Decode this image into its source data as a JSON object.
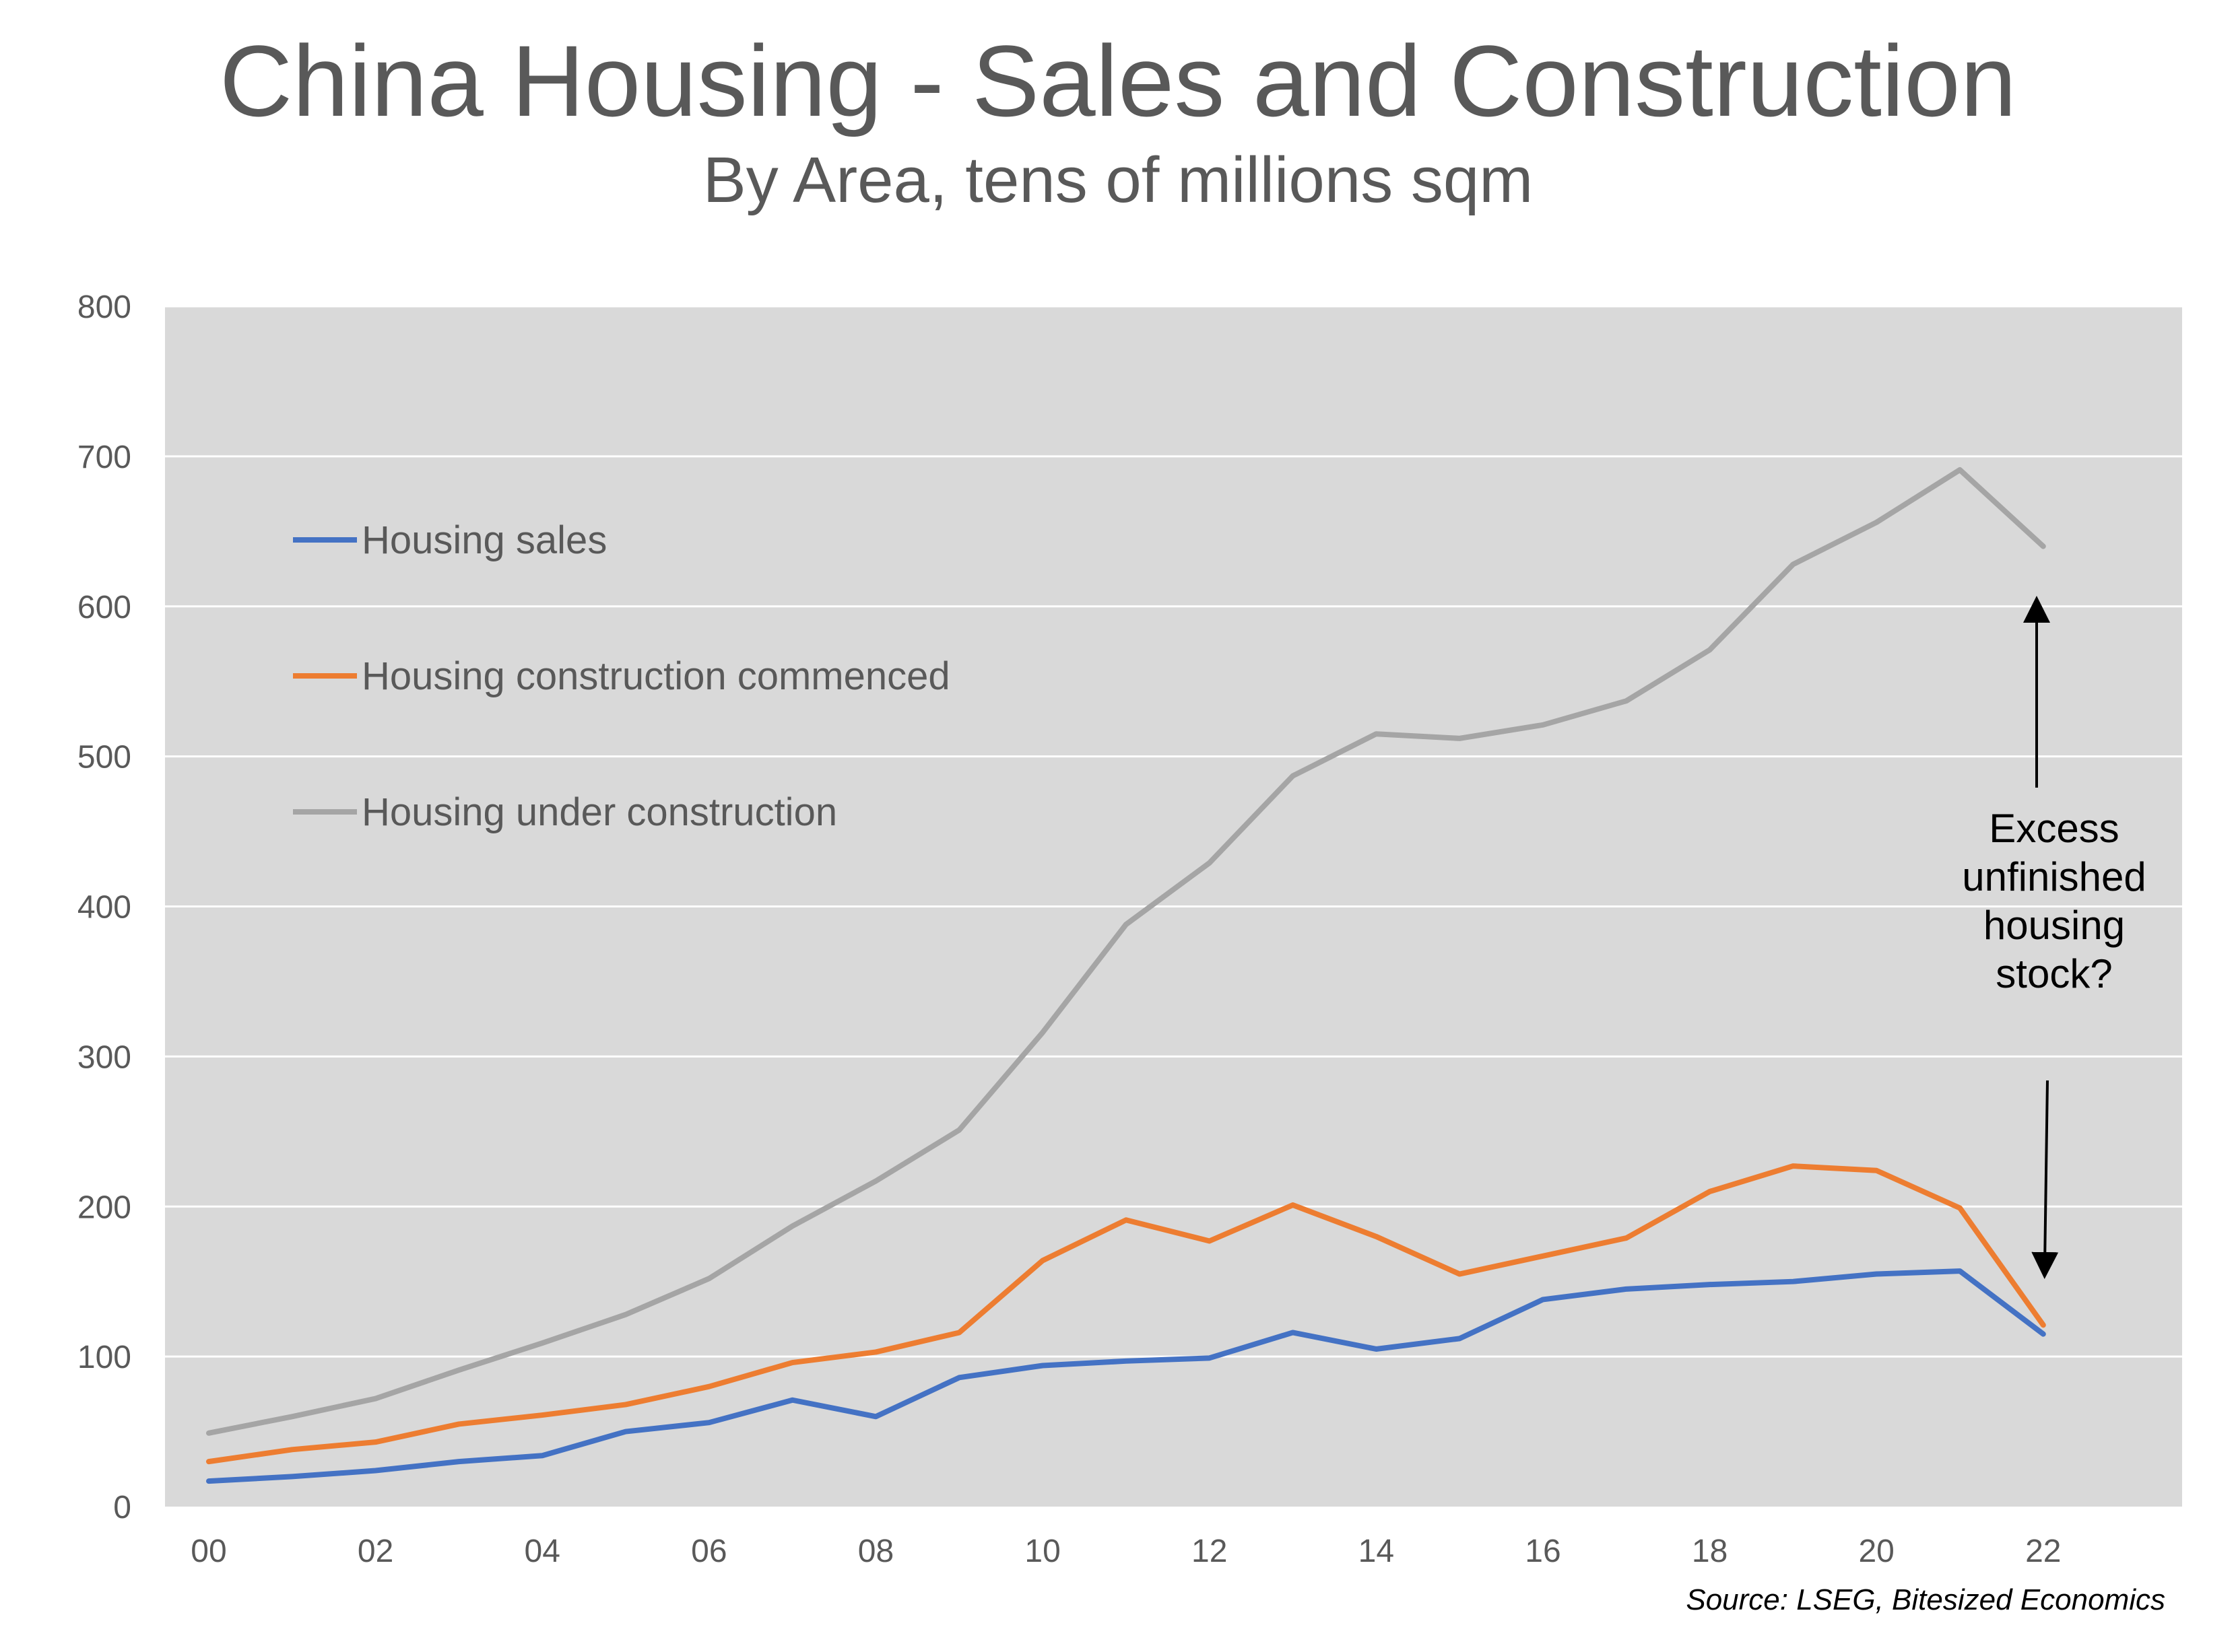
{
  "title": "China Housing - Sales and Construction",
  "subtitle": "By Area, tens of millions sqm",
  "source": "Source: LSEG, Bitesized Economics",
  "annotation": [
    "Excess",
    "unfinished",
    "housing",
    "stock?"
  ],
  "colors": {
    "plot_bg": "#d9d9d9",
    "grid": "#ffffff",
    "sales": "#4472c4",
    "commenced": "#ed7d31",
    "under_construction": "#a5a5a5",
    "text": "#595959"
  },
  "chart_data": {
    "type": "line",
    "title": "China Housing - Sales and Construction",
    "subtitle": "By Area, tens of millions sqm",
    "xlabel": "",
    "ylabel": "",
    "ylim": [
      0,
      800
    ],
    "yticks": [
      0,
      100,
      200,
      300,
      400,
      500,
      600,
      700,
      800
    ],
    "xlim": [
      0,
      23
    ],
    "xticks": [
      0,
      2,
      4,
      6,
      8,
      10,
      12,
      14,
      16,
      18,
      20,
      22
    ],
    "xtick_labels": [
      "00",
      "02",
      "04",
      "06",
      "08",
      "10",
      "12",
      "14",
      "16",
      "18",
      "20",
      "22"
    ],
    "x": [
      0,
      1,
      2,
      3,
      4,
      5,
      6,
      7,
      8,
      9,
      10,
      11,
      12,
      13,
      14,
      15,
      16,
      17,
      18,
      19,
      20,
      21,
      22
    ],
    "legend_position": "upper-left",
    "grid": true,
    "series": [
      {
        "name": "Housing sales",
        "color": "#4472c4",
        "values": [
          17,
          20,
          24,
          30,
          34,
          50,
          56,
          71,
          60,
          86,
          94,
          97,
          99,
          116,
          105,
          112,
          138,
          145,
          148,
          150,
          155,
          157,
          115
        ]
      },
      {
        "name": "Housing construction commenced",
        "color": "#ed7d31",
        "values": [
          30,
          38,
          43,
          55,
          61,
          68,
          80,
          96,
          103,
          116,
          164,
          191,
          177,
          201,
          180,
          155,
          167,
          179,
          210,
          227,
          224,
          199,
          121
        ]
      },
      {
        "name": "Housing under construction",
        "color": "#a5a5a5",
        "values": [
          49,
          60,
          72,
          91,
          109,
          128,
          152,
          187,
          217,
          251,
          316,
          388,
          429,
          487,
          515,
          512,
          521,
          537,
          571,
          628,
          656,
          691,
          640
        ]
      }
    ]
  }
}
